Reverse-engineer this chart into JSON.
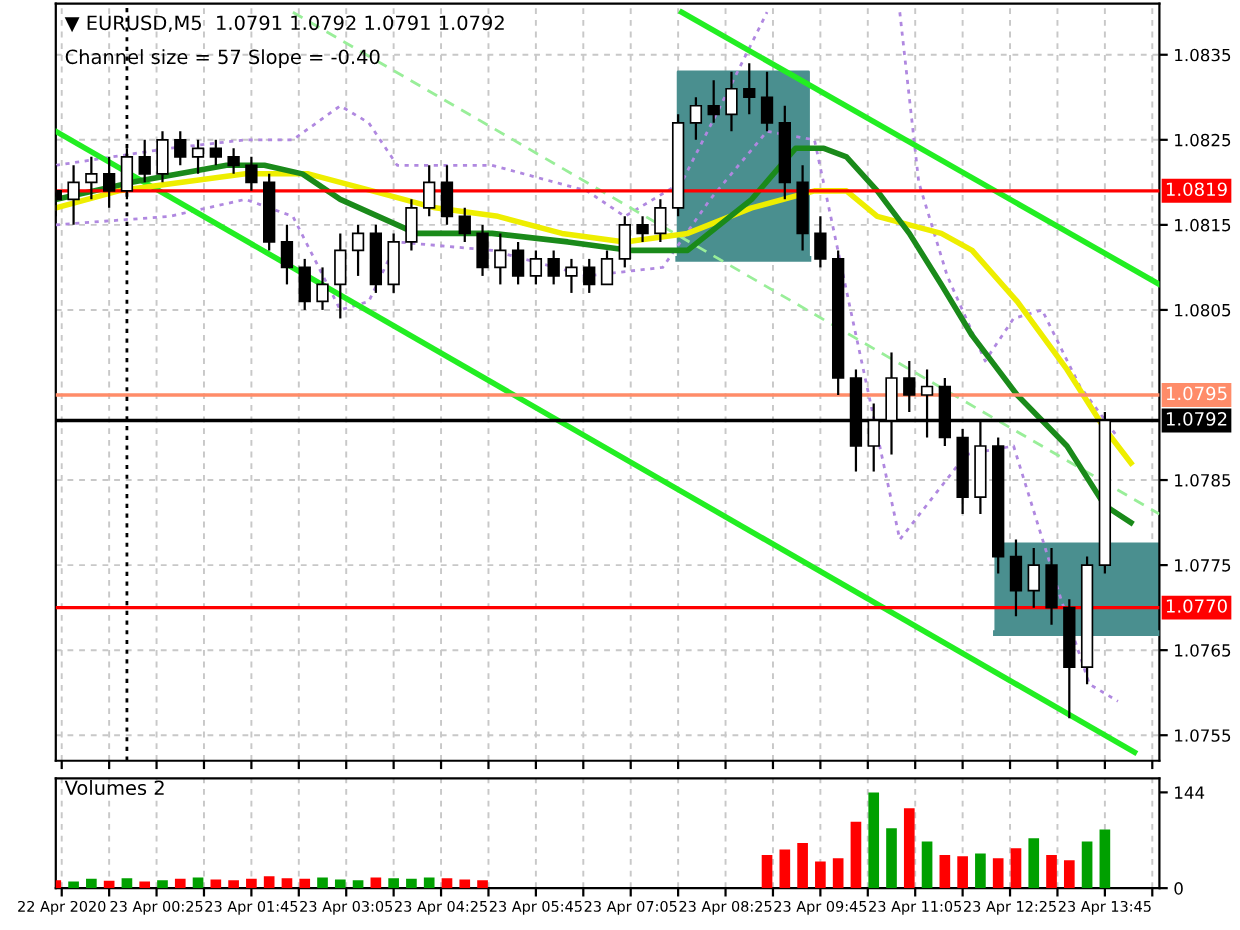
{
  "chart_data": [
    {
      "type": "candlestick",
      "title": "▼ EURUSD,M5  1.0791 1.0792 1.0791 1.0792",
      "subtitle": "Channel size = 57 Slope = -0.40",
      "x": [
        "2020-04-22T23:00",
        "2020-04-22T23:15",
        "2020-04-22T23:30",
        "2020-04-22T23:45",
        "2020-04-23T00:00",
        "2020-04-23T00:15",
        "2020-04-23T00:30",
        "2020-04-23T00:45",
        "2020-04-23T01:00",
        "2020-04-23T01:15",
        "2020-04-23T01:30",
        "2020-04-23T01:45",
        "2020-04-23T02:00",
        "2020-04-23T02:15",
        "2020-04-23T02:30",
        "2020-04-23T02:45",
        "2020-04-23T03:00",
        "2020-04-23T03:15",
        "2020-04-23T03:30",
        "2020-04-23T03:45",
        "2020-04-23T04:00",
        "2020-04-23T04:15",
        "2020-04-23T04:30",
        "2020-04-23T04:45",
        "2020-04-23T05:00",
        "2020-04-23T05:15",
        "2020-04-23T05:30",
        "2020-04-23T05:45",
        "2020-04-23T06:00",
        "2020-04-23T06:15",
        "2020-04-23T06:30",
        "2020-04-23T06:45",
        "2020-04-23T07:00",
        "2020-04-23T07:15",
        "2020-04-23T07:30",
        "2020-04-23T07:45",
        "2020-04-23T08:00",
        "2020-04-23T08:15",
        "2020-04-23T08:30",
        "2020-04-23T08:45",
        "2020-04-23T09:00",
        "2020-04-23T09:15",
        "2020-04-23T09:30",
        "2020-04-23T09:45",
        "2020-04-23T10:00",
        "2020-04-23T10:15",
        "2020-04-23T10:30",
        "2020-04-23T10:45",
        "2020-04-23T11:00",
        "2020-04-23T11:15",
        "2020-04-23T11:30",
        "2020-04-23T11:45",
        "2020-04-23T12:00",
        "2020-04-23T12:15",
        "2020-04-23T12:30",
        "2020-04-23T12:45",
        "2020-04-23T13:00",
        "2020-04-23T13:15",
        "2020-04-23T13:30",
        "2020-04-23T13:45"
      ],
      "ohlc": [
        [
          1.0819,
          1.0822,
          1.0816,
          1.0818
        ],
        [
          1.0818,
          1.0822,
          1.0815,
          1.082
        ],
        [
          1.082,
          1.0823,
          1.0818,
          1.0821
        ],
        [
          1.0821,
          1.0823,
          1.0817,
          1.0819
        ],
        [
          1.0819,
          1.0824,
          1.0818,
          1.0823
        ],
        [
          1.0823,
          1.0825,
          1.082,
          1.0821
        ],
        [
          1.0821,
          1.0826,
          1.082,
          1.0825
        ],
        [
          1.0825,
          1.0826,
          1.0822,
          1.0823
        ],
        [
          1.0823,
          1.0825,
          1.0821,
          1.0824
        ],
        [
          1.0824,
          1.0825,
          1.0822,
          1.0823
        ],
        [
          1.0823,
          1.0824,
          1.0821,
          1.0822
        ],
        [
          1.0822,
          1.0823,
          1.0819,
          1.082
        ],
        [
          1.082,
          1.0821,
          1.0812,
          1.0813
        ],
        [
          1.0813,
          1.0815,
          1.0808,
          1.081
        ],
        [
          1.081,
          1.0811,
          1.0805,
          1.0806
        ],
        [
          1.0806,
          1.081,
          1.0805,
          1.0808
        ],
        [
          1.0808,
          1.0814,
          1.0804,
          1.0812
        ],
        [
          1.0812,
          1.0815,
          1.0809,
          1.0814
        ],
        [
          1.0814,
          1.0815,
          1.0807,
          1.0808
        ],
        [
          1.0808,
          1.0814,
          1.0807,
          1.0813
        ],
        [
          1.0813,
          1.0818,
          1.0812,
          1.0817
        ],
        [
          1.0817,
          1.0822,
          1.0816,
          1.082
        ],
        [
          1.082,
          1.0822,
          1.0815,
          1.0816
        ],
        [
          1.0816,
          1.0817,
          1.0813,
          1.0814
        ],
        [
          1.0814,
          1.0815,
          1.0809,
          1.081
        ],
        [
          1.081,
          1.0814,
          1.0808,
          1.0812
        ],
        [
          1.0812,
          1.0813,
          1.0808,
          1.0809
        ],
        [
          1.0809,
          1.0812,
          1.0808,
          1.0811
        ],
        [
          1.0811,
          1.0812,
          1.0808,
          1.0809
        ],
        [
          1.0809,
          1.0811,
          1.0807,
          1.081
        ],
        [
          1.081,
          1.0811,
          1.0807,
          1.0808
        ],
        [
          1.0808,
          1.0812,
          1.0808,
          1.0811
        ],
        [
          1.0811,
          1.0816,
          1.081,
          1.0815
        ],
        [
          1.0815,
          1.0816,
          1.0813,
          1.0814
        ],
        [
          1.0814,
          1.0818,
          1.0813,
          1.0817
        ],
        [
          1.0817,
          1.0828,
          1.0816,
          1.0827
        ],
        [
          1.0827,
          1.083,
          1.0825,
          1.0829
        ],
        [
          1.0829,
          1.0832,
          1.0827,
          1.0828
        ],
        [
          1.0828,
          1.0833,
          1.0826,
          1.0831
        ],
        [
          1.0831,
          1.0834,
          1.0828,
          1.083
        ],
        [
          1.083,
          1.0833,
          1.0826,
          1.0827
        ],
        [
          1.0827,
          1.0829,
          1.0818,
          1.082
        ],
        [
          1.082,
          1.0822,
          1.0812,
          1.0814
        ],
        [
          1.0814,
          1.0816,
          1.081,
          1.0811
        ],
        [
          1.0811,
          1.0812,
          1.0795,
          1.0797
        ],
        [
          1.0797,
          1.0798,
          1.0786,
          1.0789
        ],
        [
          1.0789,
          1.0794,
          1.0786,
          1.0792
        ],
        [
          1.0792,
          1.08,
          1.0788,
          1.0797
        ],
        [
          1.0797,
          1.0799,
          1.0793,
          1.0795
        ],
        [
          1.0795,
          1.0798,
          1.079,
          1.0796
        ],
        [
          1.0796,
          1.0797,
          1.0789,
          1.079
        ],
        [
          1.079,
          1.0791,
          1.0781,
          1.0783
        ],
        [
          1.0783,
          1.0792,
          1.0781,
          1.0789
        ],
        [
          1.0789,
          1.079,
          1.0774,
          1.0776
        ],
        [
          1.0776,
          1.0778,
          1.0769,
          1.0772
        ],
        [
          1.0772,
          1.0777,
          1.077,
          1.0775
        ],
        [
          1.0775,
          1.0777,
          1.0768,
          1.077
        ],
        [
          1.077,
          1.0771,
          1.0757,
          1.0763
        ],
        [
          1.0763,
          1.0776,
          1.0761,
          1.0775
        ],
        [
          1.0775,
          1.0793,
          1.0774,
          1.0792
        ]
      ],
      "series": [
        {
          "type": "line",
          "color": "#4a8f8f",
          "x": [
            "2020-04-23T07:45",
            "2020-04-23T09:35"
          ],
          "values": [
            1.0811,
            1.0811
          ],
          "lower": [
            1.0811,
            1.0811
          ],
          "upper": [
            1.0833,
            1.0833
          ]
        },
        {
          "type": "line",
          "color": "#4a8f8f",
          "x": [
            "2020-04-23T12:13",
            "2020-04-23T14:31"
          ],
          "values": [
            1.0767,
            1.0767
          ],
          "lower": [
            1.0767,
            1.0767
          ],
          "upper": [
            1.07775,
            1.07775
          ]
        },
        {
          "type": "line",
          "color": "#b088e0",
          "line_style": "dotted",
          "x": [
            "2020-04-22T23:00",
            "2020-04-23T00:36",
            "2020-04-23T01:40",
            "2020-04-23T02:20",
            "2020-04-23T03:00",
            "2020-04-23T03:24",
            "2020-04-23T03:48",
            "2020-04-23T05:08",
            "2020-04-23T06:28",
            "2020-04-23T07:00",
            "2020-04-23T07:48",
            "2020-04-23T08:28",
            "2020-04-23T09:00",
            "2020-04-23T09:40",
            "2020-04-23T10:52",
            "2020-04-23T11:08",
            "2020-04-23T11:32",
            "2020-04-23T12:04",
            "2020-04-23T12:28",
            "2020-04-23T12:52",
            "2020-04-23T13:24",
            "2020-04-23T13:56"
          ],
          "values": [
            1.0822,
            1.0824,
            1.0825,
            1.0825,
            1.0829,
            1.0827,
            1.0822,
            1.0822,
            1.0819,
            1.0816,
            1.082,
            1.0831,
            1.084,
            null,
            1.084,
            1.082,
            1.0809,
            1.0799,
            1.0804,
            1.0805,
            1.0796,
            1.079
          ]
        },
        {
          "type": "line",
          "color": "#b088e0",
          "line_style": "dotted",
          "x": [
            "2020-04-22T23:00",
            "2020-04-23T00:36",
            "2020-04-23T01:40",
            "2020-04-23T02:20",
            "2020-04-23T03:00",
            "2020-04-23T03:24",
            "2020-04-23T03:48",
            "2020-04-23T05:08",
            "2020-04-23T06:28",
            "2020-04-23T07:32",
            "2020-04-23T08:12",
            "2020-04-23T09:00",
            "2020-04-23T09:40",
            "2020-04-23T10:12",
            "2020-04-23T10:52",
            "2020-04-23T11:48",
            "2020-04-23T12:28",
            "2020-04-23T13:08",
            "2020-04-23T13:32",
            "2020-04-23T13:56"
          ],
          "values": [
            1.0815,
            1.0816,
            1.0818,
            1.0816,
            1.0805,
            1.0806,
            1.0813,
            1.0812,
            1.0809,
            1.081,
            1.0818,
            1.0826,
            1.0825,
            1.0804,
            1.0778,
            1.0788,
            1.0789,
            1.0771,
            1.0761,
            1.0759
          ]
        },
        {
          "type": "line",
          "color": "#99ee99",
          "line_style": "dashed",
          "x": [
            "2020-04-23T02:20",
            "2020-04-23T14:31"
          ],
          "values": [
            1.084,
            1.0781
          ]
        },
        {
          "type": "line",
          "color": "#22ee22",
          "line_style": "solid",
          "x": [
            "2020-04-23T07:48",
            "2020-04-23T14:31"
          ],
          "values": [
            1.084,
            1.0808
          ]
        },
        {
          "type": "line",
          "color": "#22ee22",
          "line_style": "solid",
          "x": [
            "2020-04-22T23:00",
            "2020-04-23T14:10"
          ],
          "values": [
            1.0826,
            1.0753
          ]
        },
        {
          "type": "line",
          "color": "#eeee00",
          "line_style": "solid",
          "x": [
            "2020-04-22T23:00",
            "2020-04-22T23:53",
            "2020-04-23T01:40",
            "2020-04-23T02:33",
            "2020-04-23T03:27",
            "2020-04-23T04:20",
            "2020-04-23T05:13",
            "2020-04-23T06:07",
            "2020-04-23T07:00",
            "2020-04-23T07:53",
            "2020-04-23T08:47",
            "2020-04-23T09:40",
            "2020-04-23T10:07",
            "2020-04-23T10:33",
            "2020-04-23T11:27",
            "2020-04-23T11:53",
            "2020-04-23T12:31",
            "2020-04-23T13:13",
            "2020-04-23T13:45",
            "2020-04-23T14:07"
          ],
          "values": [
            1.0817,
            1.0819,
            1.0821,
            1.0821,
            1.0819,
            1.0817,
            1.0816,
            1.0814,
            1.0813,
            1.0814,
            1.0817,
            1.0819,
            1.0819,
            1.0816,
            1.0814,
            1.0812,
            1.0806,
            1.0798,
            1.0791,
            1.0787
          ]
        },
        {
          "type": "line",
          "color": "#1a8a1a",
          "line_style": "solid",
          "x": [
            "2020-04-22T23:00",
            "2020-04-23T00:04",
            "2020-04-23T01:24",
            "2020-04-23T01:56",
            "2020-04-23T02:28",
            "2020-04-23T03:00",
            "2020-04-23T03:32",
            "2020-04-23T04:04",
            "2020-04-23T05:08",
            "2020-04-23T06:12",
            "2020-04-23T07:05",
            "2020-04-23T07:53",
            "2020-04-23T08:47",
            "2020-04-23T09:24",
            "2020-04-23T09:48",
            "2020-04-23T10:07",
            "2020-04-23T10:33",
            "2020-04-23T11:00",
            "2020-04-23T11:27",
            "2020-04-23T11:53",
            "2020-04-23T12:31",
            "2020-04-23T13:13",
            "2020-04-23T13:45",
            "2020-04-23T14:07"
          ],
          "values": [
            1.0818,
            1.082,
            1.0822,
            1.0822,
            1.0821,
            1.0818,
            1.0816,
            1.0814,
            1.0814,
            1.0813,
            1.0812,
            1.0812,
            1.0818,
            1.0824,
            1.0824,
            1.0823,
            1.0819,
            1.0814,
            1.0808,
            1.0802,
            1.0795,
            1.0789,
            1.0782,
            1.078
          ]
        }
      ],
      "ref_lines": [
        {
          "axis": "y",
          "value": 1.0819,
          "label": "1.0819",
          "color": "#ff0000"
        },
        {
          "axis": "y",
          "value": 1.0795,
          "label": "1.0795",
          "color": "#ff8c69"
        },
        {
          "axis": "y",
          "value": 1.0792,
          "label": "1.0792",
          "color": "#000000"
        },
        {
          "axis": "y",
          "value": 1.077,
          "label": "1.0770",
          "color": "#ff0000"
        },
        {
          "axis": "x",
          "value": "2020-04-23T00:00",
          "color": "#000000",
          "line_style": "dotted"
        }
      ],
      "xlim": [
        "2020-04-22T23:00",
        "2020-04-23T14:31"
      ],
      "ylim": [
        1.0752,
        1.0841
      ],
      "yticks": [
        1.0835,
        1.0825,
        1.0815,
        1.0805,
        1.0785,
        1.0775,
        1.0765,
        1.0755
      ],
      "xticks": [
        {
          "value": "2020-04-22T23:05",
          "label": null
        },
        {
          "value": "2020-04-22T23:45",
          "label": null
        },
        {
          "value": "2020-04-23T00:25",
          "label": null
        },
        {
          "value": "2020-04-23T01:05",
          "label": null
        },
        {
          "value": "2020-04-23T01:45",
          "label": null
        },
        {
          "value": "2020-04-23T02:25",
          "label": null
        },
        {
          "value": "2020-04-23T03:05",
          "label": null
        },
        {
          "value": "2020-04-23T03:45",
          "label": null
        },
        {
          "value": "2020-04-23T04:25",
          "label": null
        },
        {
          "value": "2020-04-23T05:05",
          "label": null
        },
        {
          "value": "2020-04-23T05:45",
          "label": null
        },
        {
          "value": "2020-04-23T06:25",
          "label": null
        },
        {
          "value": "2020-04-23T07:05",
          "label": null
        },
        {
          "value": "2020-04-23T07:45",
          "label": null
        },
        {
          "value": "2020-04-23T08:25",
          "label": null
        },
        {
          "value": "2020-04-23T09:05",
          "label": null
        },
        {
          "value": "2020-04-23T09:45",
          "label": null
        },
        {
          "value": "2020-04-23T10:25",
          "label": null
        },
        {
          "value": "2020-04-23T11:05",
          "label": null
        },
        {
          "value": "2020-04-23T11:45",
          "label": null
        },
        {
          "value": "2020-04-23T12:25",
          "label": null
        },
        {
          "value": "2020-04-23T13:05",
          "label": null
        },
        {
          "value": "2020-04-23T13:45",
          "label": null
        },
        {
          "value": "2020-04-23T14:25",
          "label": null
        }
      ],
      "grid": true,
      "tick_labels": "y"
    },
    {
      "type": "bar",
      "title": "Volumes 2",
      "x": [
        "2020-04-22T23:00",
        "2020-04-22T23:15",
        "2020-04-22T23:30",
        "2020-04-22T23:45",
        "2020-04-23T00:00",
        "2020-04-23T00:15",
        "2020-04-23T00:30",
        "2020-04-23T00:45",
        "2020-04-23T01:00",
        "2020-04-23T01:15",
        "2020-04-23T01:30",
        "2020-04-23T01:45",
        "2020-04-23T02:00",
        "2020-04-23T02:15",
        "2020-04-23T02:30",
        "2020-04-23T02:45",
        "2020-04-23T03:00",
        "2020-04-23T03:15",
        "2020-04-23T03:30",
        "2020-04-23T03:45",
        "2020-04-23T04:00",
        "2020-04-23T04:15",
        "2020-04-23T04:30",
        "2020-04-23T04:45",
        "2020-04-23T05:00",
        "2020-04-23T05:15",
        "2020-04-23T05:30",
        "2020-04-23T05:45",
        "2020-04-23T06:00",
        "2020-04-23T06:15",
        "2020-04-23T06:30",
        "2020-04-23T06:45",
        "2020-04-23T07:00",
        "2020-04-23T07:15",
        "2020-04-23T07:30",
        "2020-04-23T07:45",
        "2020-04-23T08:00",
        "2020-04-23T08:15",
        "2020-04-23T08:30",
        "2020-04-23T08:45",
        "2020-04-23T09:00",
        "2020-04-23T09:15",
        "2020-04-23T09:30",
        "2020-04-23T09:45",
        "2020-04-23T10:00",
        "2020-04-23T10:15",
        "2020-04-23T10:30",
        "2020-04-23T10:45",
        "2020-04-23T11:00",
        "2020-04-23T11:15",
        "2020-04-23T11:30",
        "2020-04-23T11:45",
        "2020-04-23T12:00",
        "2020-04-23T12:15",
        "2020-04-23T12:30",
        "2020-04-23T12:45",
        "2020-04-23T13:00",
        "2020-04-23T13:15",
        "2020-04-23T13:30",
        "2020-04-23T13:45"
      ],
      "values": [
        12,
        10,
        14,
        11,
        15,
        10,
        12,
        14,
        16,
        13,
        12,
        14,
        18,
        15,
        14,
        16,
        13,
        12,
        16,
        15,
        14,
        16,
        15,
        13,
        12,
        null,
        null,
        null,
        null,
        null,
        null,
        null,
        null,
        null,
        null,
        null,
        null,
        null,
        null,
        null,
        50,
        58,
        68,
        40,
        45,
        100,
        144,
        90,
        120,
        70,
        50,
        48,
        52,
        45,
        60,
        75,
        50,
        42,
        70,
        88
      ],
      "colors": [
        "#ff0000",
        "#00a000",
        "#00a000",
        "#ff0000",
        "#00a000",
        "#ff0000",
        "#00a000",
        "#ff0000",
        "#00a000",
        "#ff0000",
        "#ff0000",
        "#ff0000",
        "#ff0000",
        "#ff0000",
        "#ff0000",
        "#00a000",
        "#00a000",
        "#00a000",
        "#ff0000",
        "#00a000",
        "#00a000",
        "#00a000",
        "#ff0000",
        "#ff0000",
        "#ff0000",
        "#00a000",
        "#ff0000",
        "#00a000",
        "#ff0000",
        "#00a000",
        "#ff0000",
        "#00a000",
        "#00a000",
        "#ff0000",
        "#00a000",
        "#00a000",
        "#00a000",
        "#ff0000",
        "#00a000",
        "#ff0000",
        "#ff0000",
        "#ff0000",
        "#ff0000",
        "#ff0000",
        "#ff0000",
        "#ff0000",
        "#00a000",
        "#00a000",
        "#ff0000",
        "#00a000",
        "#ff0000",
        "#ff0000",
        "#00a000",
        "#ff0000",
        "#ff0000",
        "#00a000",
        "#ff0000",
        "#ff0000",
        "#00a000",
        "#00a000"
      ],
      "xlim": [
        "2020-04-22T23:00",
        "2020-04-23T14:31"
      ],
      "ylim": [
        0,
        165
      ],
      "yticks": [
        0,
        144
      ],
      "xticks": [
        {
          "value": "2020-04-22T23:05",
          "label": "22 Apr 2020"
        },
        {
          "value": "2020-04-22T23:45",
          "label": null
        },
        {
          "value": "2020-04-23T00:25",
          "label": "23 Apr 00:25"
        },
        {
          "value": "2020-04-23T01:05",
          "label": null
        },
        {
          "value": "2020-04-23T01:45",
          "label": "23 Apr 01:45"
        },
        {
          "value": "2020-04-23T02:25",
          "label": null
        },
        {
          "value": "2020-04-23T03:05",
          "label": "23 Apr 03:05"
        },
        {
          "value": "2020-04-23T03:45",
          "label": null
        },
        {
          "value": "2020-04-23T04:25",
          "label": "23 Apr 04:25"
        },
        {
          "value": "2020-04-23T05:05",
          "label": null
        },
        {
          "value": "2020-04-23T05:45",
          "label": "23 Apr 05:45"
        },
        {
          "value": "2020-04-23T06:25",
          "label": null
        },
        {
          "value": "2020-04-23T07:05",
          "label": "23 Apr 07:05"
        },
        {
          "value": "2020-04-23T07:45",
          "label": null
        },
        {
          "value": "2020-04-23T08:25",
          "label": "23 Apr 08:25"
        },
        {
          "value": "2020-04-23T09:05",
          "label": null
        },
        {
          "value": "2020-04-23T09:45",
          "label": "23 Apr 09:45"
        },
        {
          "value": "2020-04-23T10:25",
          "label": null
        },
        {
          "value": "2020-04-23T11:05",
          "label": "23 Apr 11:05"
        },
        {
          "value": "2020-04-23T11:45",
          "label": null
        },
        {
          "value": "2020-04-23T12:25",
          "label": "23 Apr 12:25"
        },
        {
          "value": "2020-04-23T13:05",
          "label": null
        },
        {
          "value": "2020-04-23T13:45",
          "label": "23 Apr 13:45"
        },
        {
          "value": "2020-04-23T14:25",
          "label": null
        }
      ],
      "grid": "x"
    }
  ]
}
